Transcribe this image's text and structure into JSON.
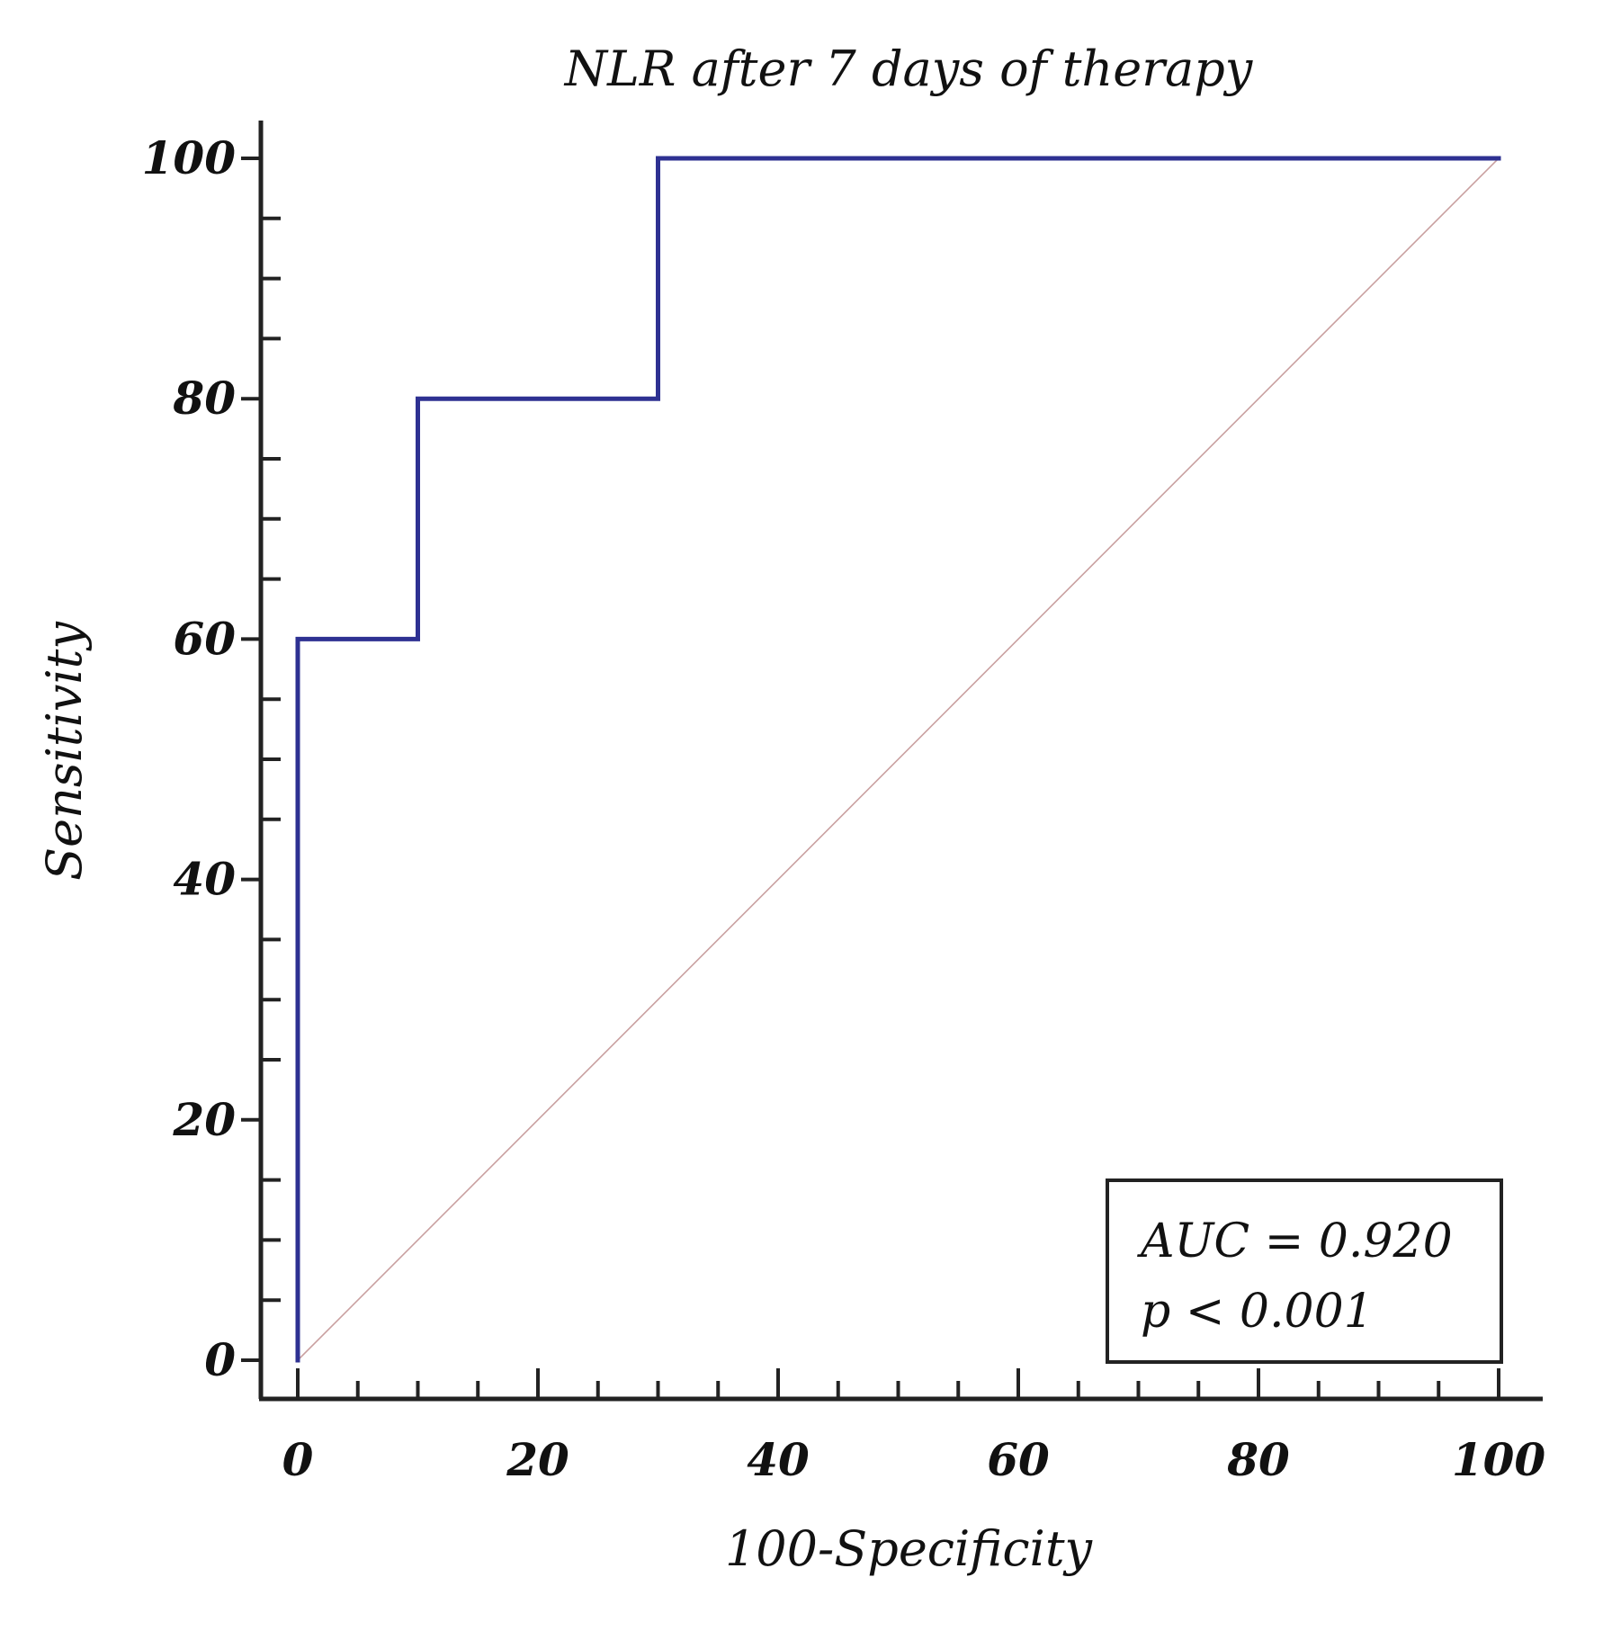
{
  "chart_data": {
    "type": "line",
    "title": "NLR after 7 days of therapy",
    "xlabel": "100-Specificity",
    "ylabel": "Sensitivity",
    "xlim": [
      0,
      100
    ],
    "ylim": [
      0,
      100
    ],
    "x_ticks": [
      0,
      20,
      40,
      60,
      80,
      100
    ],
    "y_ticks": [
      0,
      20,
      40,
      60,
      80,
      100
    ],
    "x_minor_step": 5,
    "y_minor_step": 5,
    "grid": false,
    "series": [
      {
        "name": "ROC curve",
        "color": "#2e3192",
        "x": [
          0,
          0,
          10,
          10,
          30,
          30,
          100
        ],
        "y": [
          0,
          60,
          60,
          80,
          80,
          100,
          100
        ]
      },
      {
        "name": "Reference line",
        "color": "#c9a0a0",
        "x": [
          0,
          100
        ],
        "y": [
          0,
          100
        ]
      }
    ],
    "annotations": {
      "auc": "AUC = 0.920",
      "p_value": "p < 0.001",
      "placement": "bottom-right"
    }
  }
}
